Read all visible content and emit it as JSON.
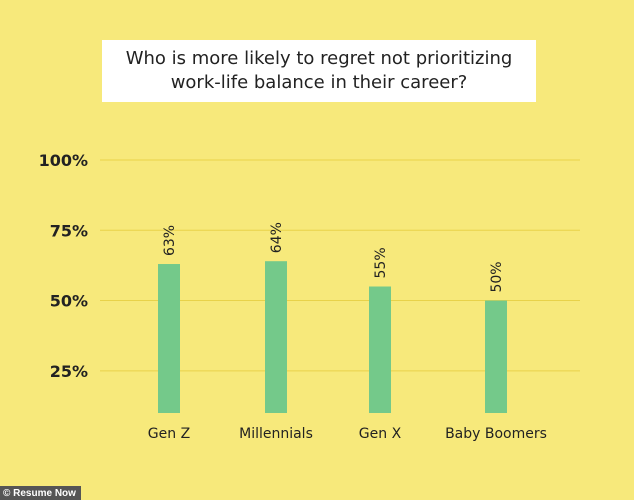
{
  "chart_data": {
    "type": "bar",
    "title": "Who is more likely to regret not prioritizing work-life balance in their career?",
    "categories": [
      "Gen Z",
      "Millennials",
      "Gen X",
      "Baby Boomers"
    ],
    "values": [
      63,
      64,
      55,
      50
    ],
    "value_labels": [
      "63%",
      "64%",
      "55%",
      "50%"
    ],
    "yticks": [
      25,
      50,
      75,
      100
    ],
    "ytick_labels": [
      "25%",
      "50%",
      "75%",
      "100%"
    ],
    "ylim": [
      10,
      100
    ],
    "grid": true,
    "bar_color": "#74C98A",
    "grid_color": "#E8D24A"
  },
  "credit": "© Resume Now"
}
